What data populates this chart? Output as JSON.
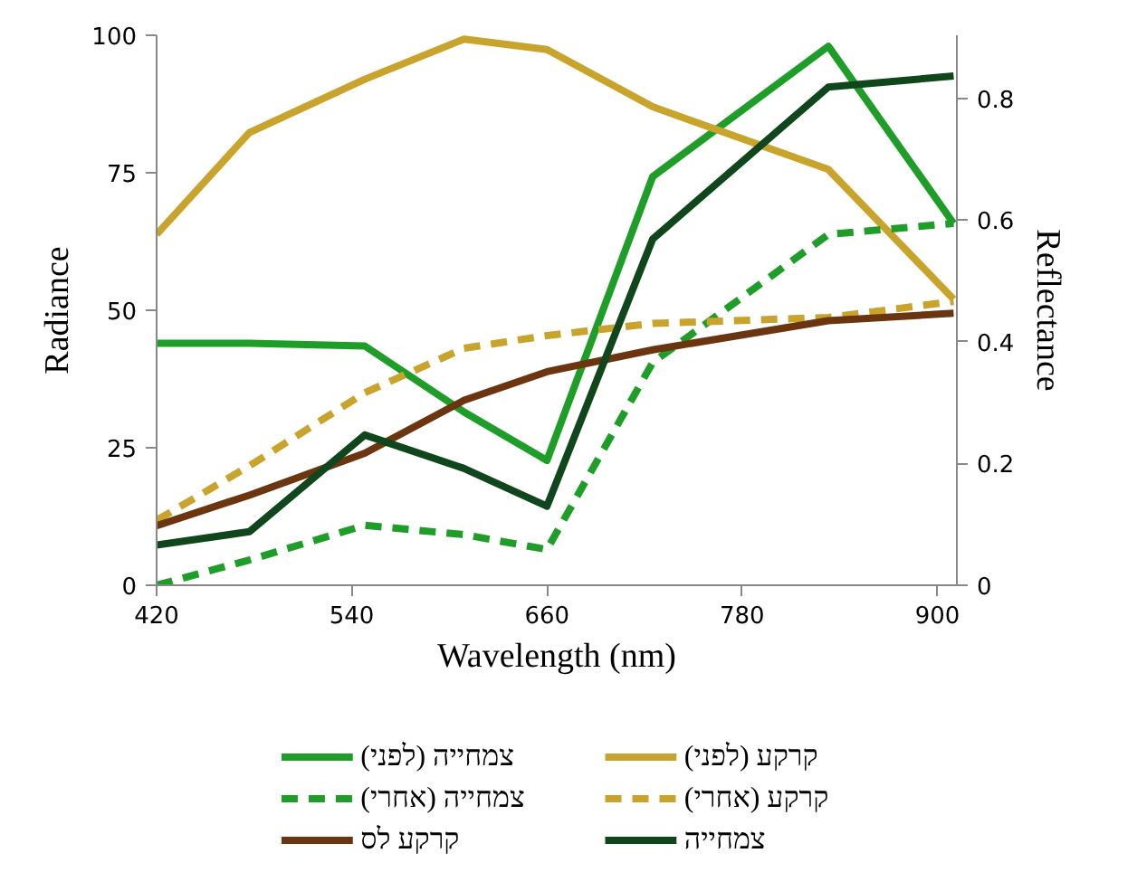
{
  "chart_data": {
    "type": "line",
    "xlabel": "Wavelength (nm)",
    "ylabel": "Radiance",
    "y2label": "Reflectance",
    "x": [
      420,
      477,
      548,
      609,
      660,
      725,
      833,
      910
    ],
    "xlim": [
      420,
      912
    ],
    "xticks": [
      420,
      540,
      660,
      780,
      900
    ],
    "ylim": [
      0,
      100
    ],
    "yticks": [
      0,
      25,
      50,
      75,
      100
    ],
    "y2lim": [
      0,
      0.904
    ],
    "y2ticks": [
      0,
      0.2,
      0.4,
      0.6,
      0.8
    ],
    "grid": false,
    "legend": "bottom",
    "marker": "none",
    "series": [
      {
        "name": "צמחייה (לפני)",
        "color": "#1e9e28",
        "line_style": "solid",
        "values": [
          44,
          44,
          43.5,
          31.5,
          22.7,
          74.3,
          98,
          65.8
        ]
      },
      {
        "name": "קרקע (לפני)",
        "color": "#c9a42c",
        "line_style": "solid",
        "values": [
          63.8,
          82.3,
          92,
          99.3,
          97.4,
          87,
          75.6,
          52
        ]
      },
      {
        "name": "צמחייה (אחרי)",
        "color": "#1e9e28",
        "line_style": "dashed",
        "values": [
          0,
          4.6,
          10.9,
          9.2,
          6.5,
          40.5,
          63.8,
          65.8
        ]
      },
      {
        "name": "קרקע (אחרי)",
        "color": "#c9a42c",
        "line_style": "dashed",
        "values": [
          11.8,
          21.7,
          35,
          43.1,
          45.4,
          47.6,
          48.7,
          51.6
        ]
      },
      {
        "name": "קרקע לס",
        "color": "#6b3510",
        "line_style": "solid",
        "axis": "y2",
        "values": [
          0.098,
          0.148,
          0.217,
          0.304,
          0.351,
          0.387,
          0.435,
          0.447
        ]
      },
      {
        "name": "צמחייה",
        "color": "#10461c",
        "line_style": "solid",
        "axis": "y2",
        "values": [
          0.066,
          0.088,
          0.247,
          0.192,
          0.13,
          0.569,
          0.819,
          0.837
        ]
      }
    ]
  }
}
